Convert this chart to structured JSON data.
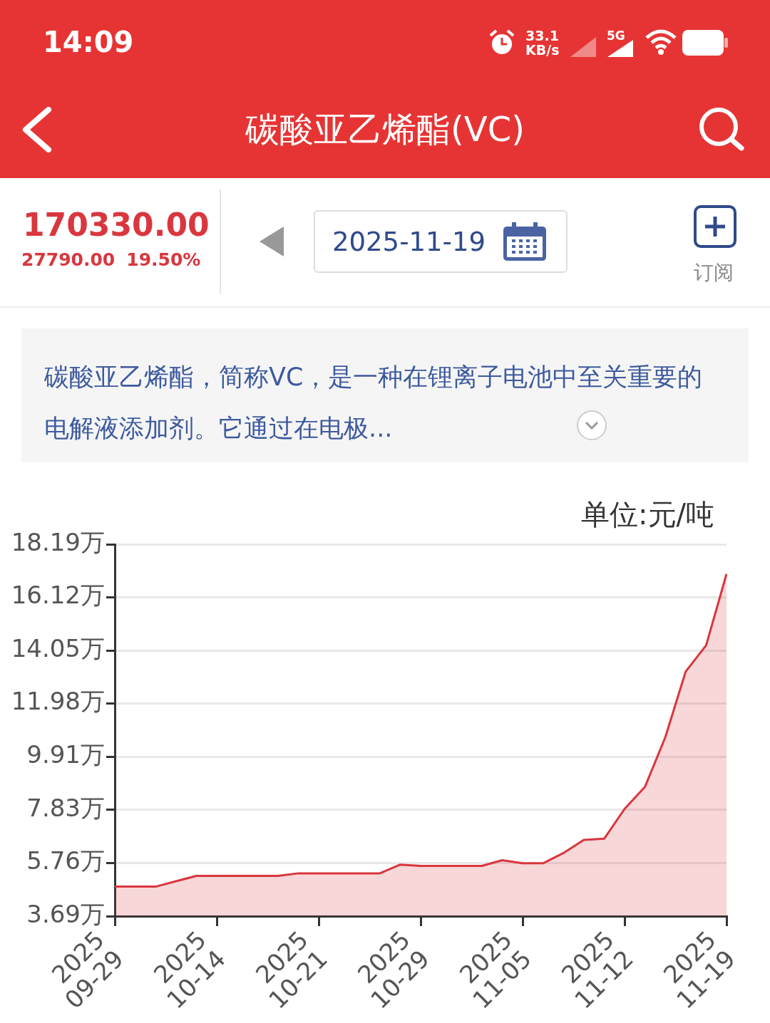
{
  "chart_data": {
    "type": "area",
    "title": "碳酸亚乙烯酯(VC)",
    "subtitle": "碳酸亚乙烯酯，简称VC，是一种在锂离子电池中至关重要的电解液添加剂。它通过在电极...",
    "ylabel": "单位:元/吨",
    "annotations": [
      "14:09",
      "33.1 KB/s",
      "5G",
      "170330.00",
      "27790.00",
      "19.50%",
      "2025-11-19",
      "订阅"
    ],
    "categories": [
      "2025\n09-29",
      null,
      null,
      null,
      null,
      "2025\n10-14",
      null,
      null,
      null,
      null,
      "2025\n10-21",
      null,
      null,
      null,
      null,
      "2025\n10-29",
      null,
      null,
      null,
      null,
      "2025\n11-05",
      null,
      null,
      null,
      null,
      "2025\n11-12",
      null,
      null,
      null,
      null,
      "2025\n11-19"
    ],
    "series": [
      {
        "color": "#d9363e",
        "values": [
          4.84,
          4.84,
          4.84,
          5.05,
          5.26,
          5.26,
          5.26,
          5.26,
          5.26,
          5.36,
          5.36,
          5.36,
          5.36,
          5.36,
          5.7,
          5.65,
          5.65,
          5.65,
          5.65,
          5.87,
          5.75,
          5.75,
          6.15,
          6.66,
          6.71,
          7.87,
          8.73,
          10.67,
          13.23,
          14.25,
          17.03
        ]
      }
    ],
    "ylim": [
      3.69,
      18.19
    ],
    "yticks": [
      {
        "value": 3.69,
        "label": "3.69万"
      },
      {
        "value": 5.76,
        "label": "5.76万"
      },
      {
        "value": 7.83,
        "label": "7.83万"
      },
      {
        "value": 9.91,
        "label": "9.91万"
      },
      {
        "value": 11.98,
        "label": "11.98万"
      },
      {
        "value": 14.05,
        "label": "14.05万"
      },
      {
        "value": 16.12,
        "label": "16.12万"
      },
      {
        "value": 18.19,
        "label": "18.19万"
      }
    ],
    "grid": "y",
    "legend": false
  }
}
